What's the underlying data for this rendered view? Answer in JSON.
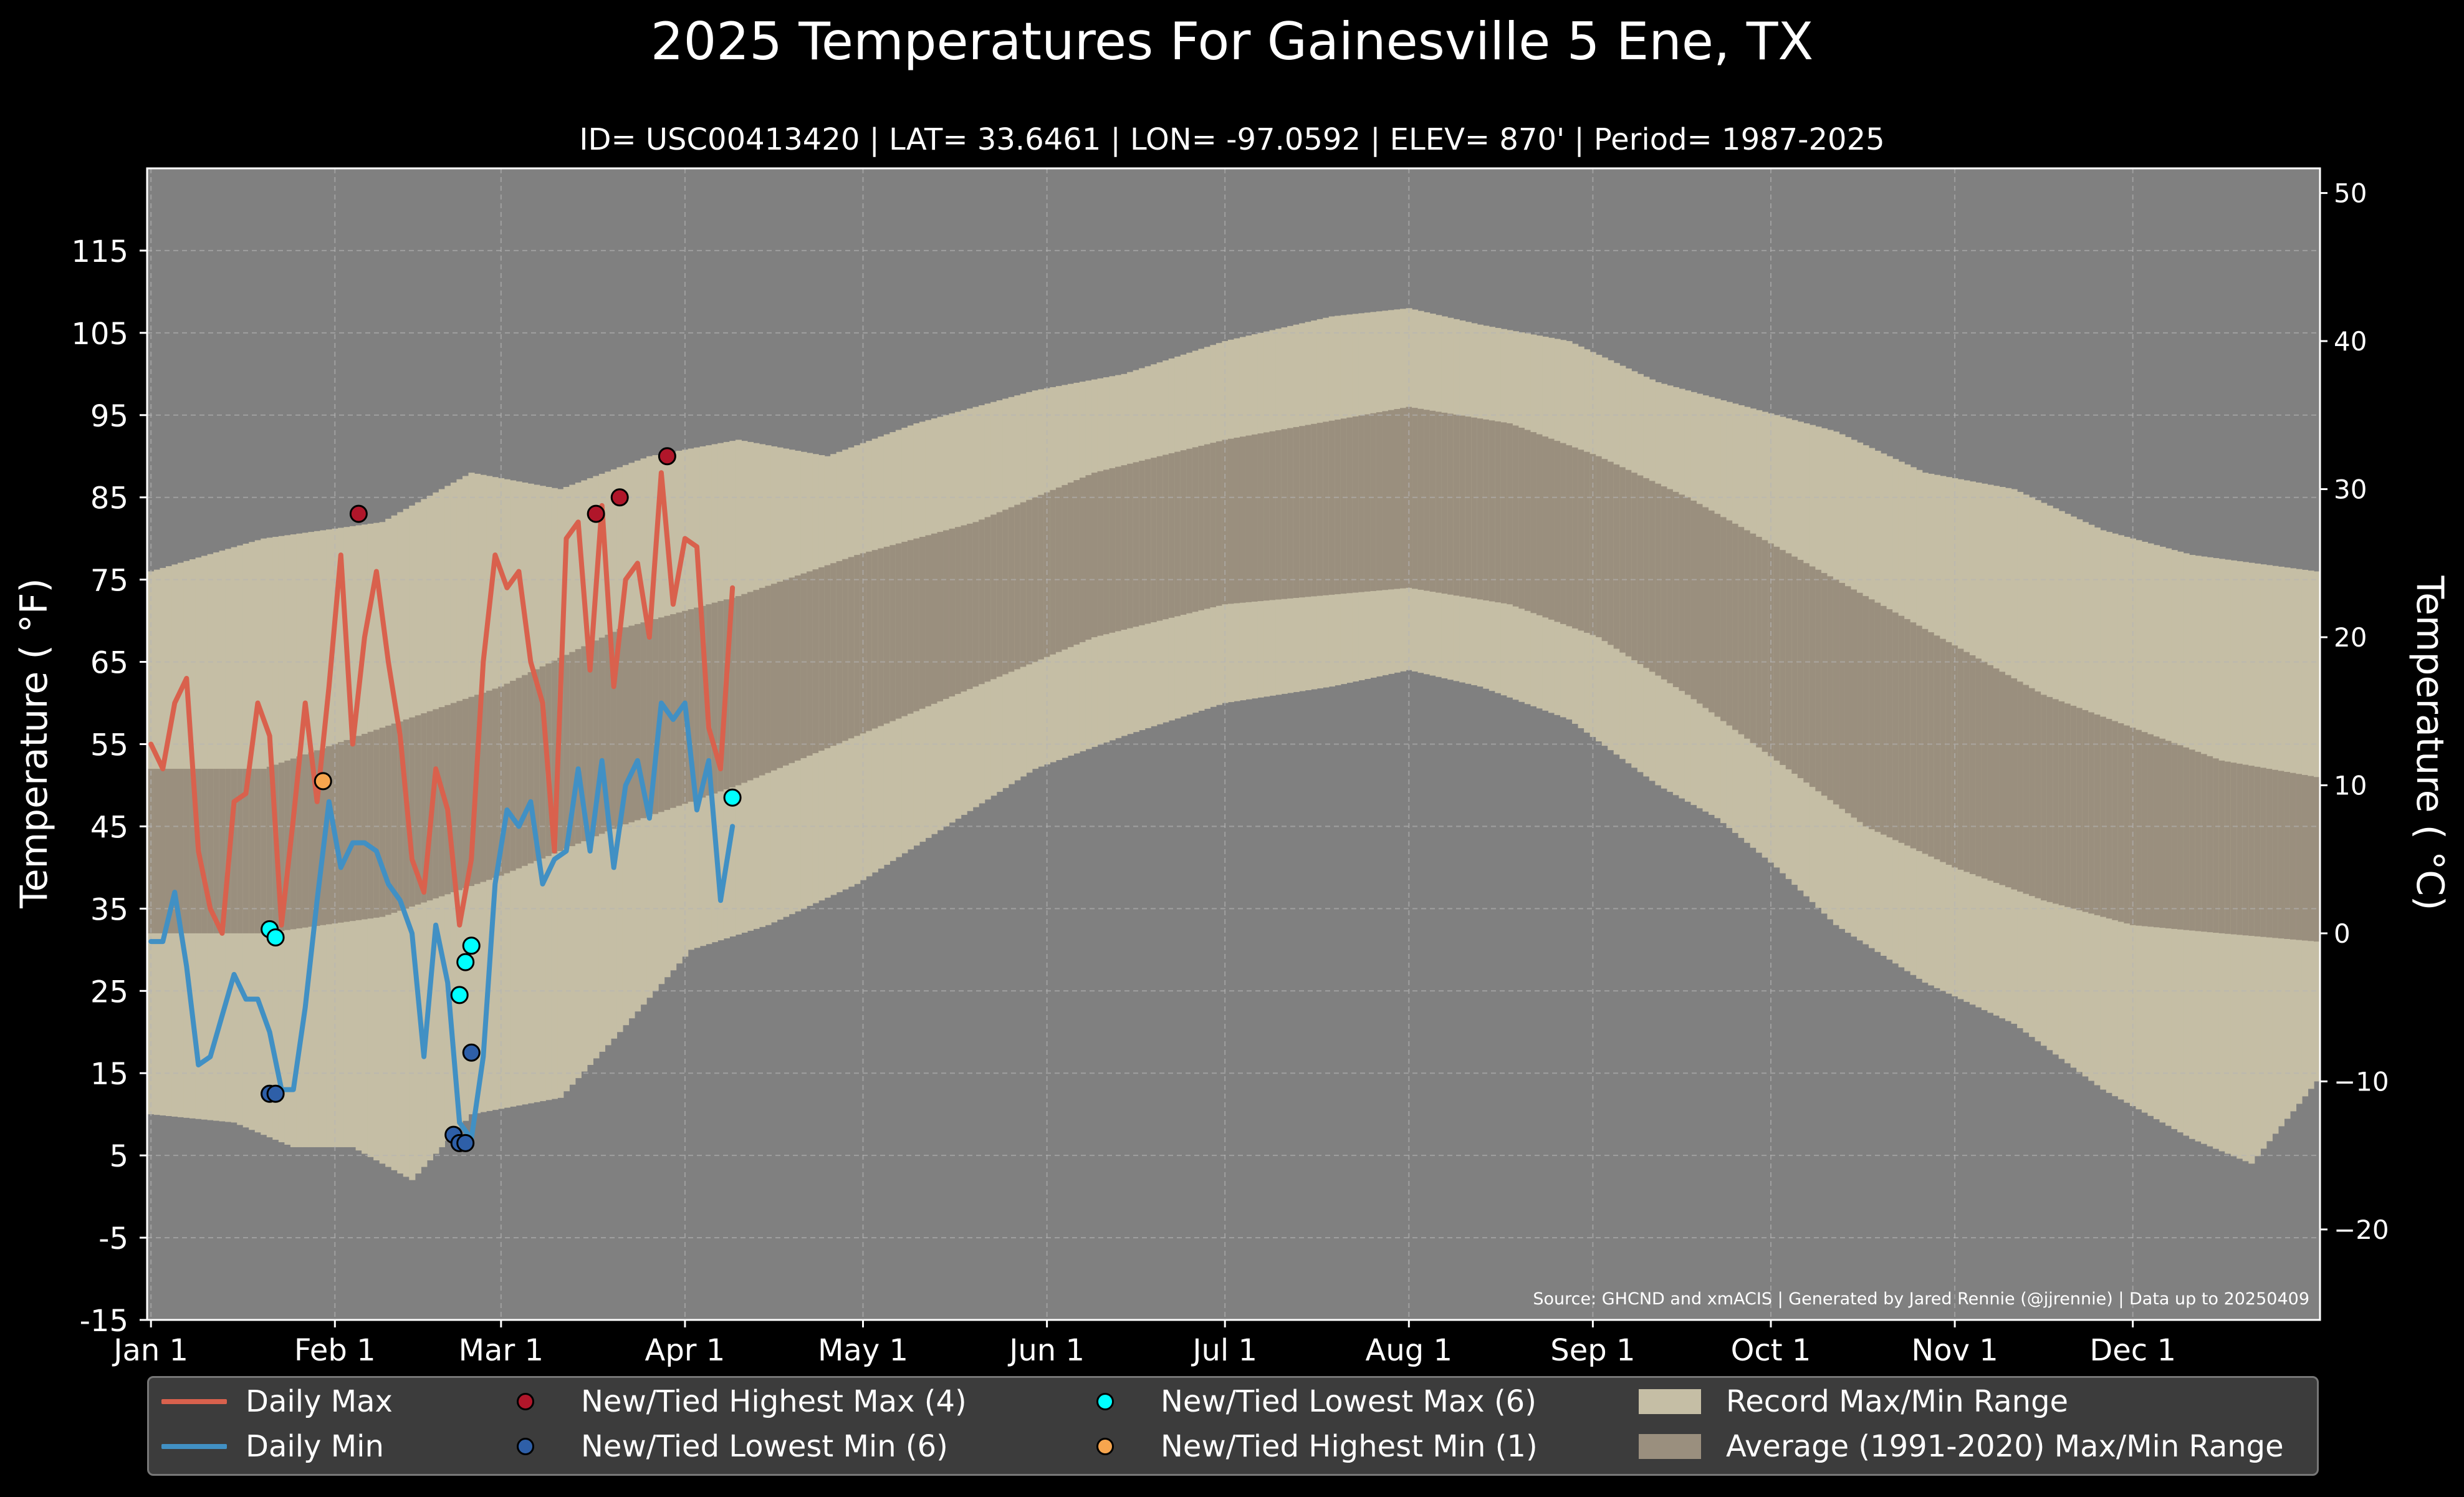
{
  "title": "2025 Temperatures For Gainesville 5 Ene, TX",
  "subtitle": "ID= USC00413420 | LAT= 33.6461 | LON= -97.0592 | ELEV= 870' | Period= 1987-2025",
  "colors": {
    "background": "#000000",
    "plot_bg": "#808080",
    "record_range": "#c5bea5",
    "normal_range": "#9a8f7e",
    "daily_max": "#d9614d",
    "daily_min": "#4190c4",
    "new_high_max": "#b0162a",
    "new_low_min": "#2e5fa8",
    "new_low_max": "#00ffff",
    "new_high_min": "#f6a54e"
  },
  "chart_data": {
    "type": "line",
    "ylabel_left": "Temperature ($^\\circ$F)",
    "ylabel_right": "Temperature ($^\\circ$C)",
    "ylabel_left_display": "Temperature ( °F)",
    "ylabel_right_display": "Temperature ( °C)",
    "ylim_f": [
      -15,
      125
    ],
    "yticks_f": [
      "-15",
      "-5",
      "5",
      "15",
      "25",
      "35",
      "45",
      "55",
      "65",
      "75",
      "85",
      "95",
      "105",
      "115"
    ],
    "yticks_c": [
      "−20",
      "−10",
      "0",
      "10",
      "20",
      "30",
      "40",
      "50"
    ],
    "xticks": [
      "Jan 1",
      "Feb 1",
      "Mar 1",
      "Apr 1",
      "May 1",
      "Jun 1",
      "Jul 1",
      "Aug 1",
      "Sep 1",
      "Oct 1",
      "Nov 1",
      "Dec 1"
    ],
    "xtick_days": [
      1,
      32,
      60,
      91,
      121,
      152,
      182,
      213,
      244,
      274,
      305,
      335
    ],
    "grid": true,
    "source_note": "Source: GHCND and xmACIS | Generated by Jared Rennie (@jjrennie) | Data up to 20250409",
    "record_max_knots": [
      [
        1,
        76
      ],
      [
        20,
        80
      ],
      [
        40,
        82
      ],
      [
        55,
        88
      ],
      [
        70,
        86
      ],
      [
        85,
        90
      ],
      [
        100,
        92
      ],
      [
        115,
        90
      ],
      [
        130,
        94
      ],
      [
        150,
        98
      ],
      [
        165,
        100
      ],
      [
        182,
        104
      ],
      [
        200,
        107
      ],
      [
        213,
        108
      ],
      [
        225,
        106
      ],
      [
        240,
        104
      ],
      [
        255,
        99
      ],
      [
        270,
        96
      ],
      [
        285,
        93
      ],
      [
        300,
        88
      ],
      [
        315,
        86
      ],
      [
        330,
        81
      ],
      [
        345,
        78
      ],
      [
        366,
        76
      ]
    ],
    "record_min_knots": [
      [
        1,
        10
      ],
      [
        15,
        9
      ],
      [
        25,
        6
      ],
      [
        35,
        6
      ],
      [
        45,
        2
      ],
      [
        55,
        10
      ],
      [
        70,
        12
      ],
      [
        80,
        20
      ],
      [
        92,
        30
      ],
      [
        105,
        33
      ],
      [
        120,
        38
      ],
      [
        135,
        45
      ],
      [
        150,
        52
      ],
      [
        165,
        56
      ],
      [
        182,
        60
      ],
      [
        200,
        62
      ],
      [
        213,
        64
      ],
      [
        225,
        62
      ],
      [
        240,
        58
      ],
      [
        255,
        50
      ],
      [
        265,
        46
      ],
      [
        275,
        40
      ],
      [
        285,
        33
      ],
      [
        300,
        26
      ],
      [
        315,
        21
      ],
      [
        330,
        13
      ],
      [
        345,
        7
      ],
      [
        355,
        4
      ],
      [
        366,
        14
      ]
    ],
    "normal_max_knots": [
      [
        1,
        52
      ],
      [
        20,
        52
      ],
      [
        40,
        57
      ],
      [
        60,
        62
      ],
      [
        80,
        69
      ],
      [
        100,
        73
      ],
      [
        120,
        78
      ],
      [
        140,
        82
      ],
      [
        160,
        88
      ],
      [
        182,
        92
      ],
      [
        213,
        96
      ],
      [
        230,
        94
      ],
      [
        245,
        90
      ],
      [
        260,
        85
      ],
      [
        275,
        79
      ],
      [
        290,
        73
      ],
      [
        305,
        67
      ],
      [
        320,
        61
      ],
      [
        335,
        57
      ],
      [
        350,
        53
      ],
      [
        366,
        51
      ]
    ],
    "normal_min_knots": [
      [
        1,
        32
      ],
      [
        20,
        32
      ],
      [
        40,
        34
      ],
      [
        60,
        39
      ],
      [
        80,
        45
      ],
      [
        100,
        50
      ],
      [
        120,
        56
      ],
      [
        140,
        62
      ],
      [
        160,
        68
      ],
      [
        182,
        72
      ],
      [
        213,
        74
      ],
      [
        230,
        72
      ],
      [
        245,
        68
      ],
      [
        260,
        61
      ],
      [
        275,
        53
      ],
      [
        290,
        45
      ],
      [
        305,
        40
      ],
      [
        320,
        36
      ],
      [
        335,
        33
      ],
      [
        350,
        32
      ],
      [
        366,
        31
      ]
    ],
    "series": [
      {
        "name": "Daily Max",
        "x": [
          1,
          3,
          5,
          7,
          9,
          11,
          13,
          15,
          17,
          19,
          21,
          23,
          25,
          27,
          29,
          31,
          33,
          35,
          37,
          39,
          41,
          43,
          45,
          47,
          49,
          51,
          53,
          55,
          57,
          59,
          61,
          63,
          65,
          67,
          69,
          71,
          73,
          75,
          77,
          79,
          81,
          83,
          85,
          87,
          89,
          91,
          93,
          95,
          97,
          99
        ],
        "y": [
          55,
          52,
          60,
          63,
          42,
          35,
          32,
          48,
          49,
          60,
          56,
          33,
          46,
          60,
          48,
          62,
          78,
          55,
          68,
          76,
          65,
          56,
          41,
          37,
          52,
          47,
          33,
          41,
          65,
          78,
          74,
          76,
          65,
          60,
          42,
          80,
          82,
          64,
          84,
          62,
          75,
          77,
          68,
          88,
          72,
          80,
          79,
          57,
          52,
          74
        ]
      },
      {
        "name": "Daily Min",
        "x": [
          1,
          3,
          5,
          7,
          9,
          11,
          13,
          15,
          17,
          19,
          21,
          23,
          25,
          27,
          29,
          31,
          33,
          35,
          37,
          39,
          41,
          43,
          45,
          47,
          49,
          51,
          53,
          55,
          57,
          59,
          61,
          63,
          65,
          67,
          69,
          71,
          73,
          75,
          77,
          79,
          81,
          83,
          85,
          87,
          89,
          91,
          93,
          95,
          97,
          99
        ],
        "y": [
          31,
          31,
          37,
          28,
          16,
          17,
          22,
          27,
          24,
          24,
          20,
          13,
          13,
          23,
          36,
          48,
          40,
          43,
          43,
          42,
          38,
          36,
          32,
          17,
          33,
          26,
          9,
          7,
          17,
          38,
          47,
          45,
          48,
          38,
          41,
          42,
          52,
          42,
          53,
          40,
          50,
          53,
          46,
          60,
          58,
          60,
          47,
          53,
          36,
          45
        ]
      }
    ],
    "markers": [
      {
        "name": "New/Tied Highest Max (4)",
        "points": [
          [
            36,
            83
          ],
          [
            76,
            83
          ],
          [
            80,
            85
          ],
          [
            88,
            90
          ]
        ]
      },
      {
        "name": "New/Tied Lowest Min (6)",
        "points": [
          [
            21,
            12.5
          ],
          [
            22,
            12.5
          ],
          [
            52,
            7.5
          ],
          [
            53,
            6.5
          ],
          [
            54,
            6.5
          ],
          [
            55,
            17.5
          ]
        ]
      },
      {
        "name": "New/Tied Lowest Max (6)",
        "points": [
          [
            21,
            32.5
          ],
          [
            22,
            31.5
          ],
          [
            53,
            24.5
          ],
          [
            54,
            28.5
          ],
          [
            55,
            30.5
          ],
          [
            99,
            48.5
          ]
        ]
      },
      {
        "name": "New/Tied Highest Min (1)",
        "points": [
          [
            30,
            50.5
          ]
        ]
      }
    ],
    "legend": {
      "placement": "bottom",
      "items": [
        "Daily Max",
        "Daily Min",
        "New/Tied Highest Max (4)",
        "New/Tied Lowest Min (6)",
        "New/Tied Lowest Max (6)",
        "New/Tied Highest Min (1)",
        "Record Max/Min Range",
        "Average (1991-2020) Max/Min Range"
      ]
    }
  }
}
